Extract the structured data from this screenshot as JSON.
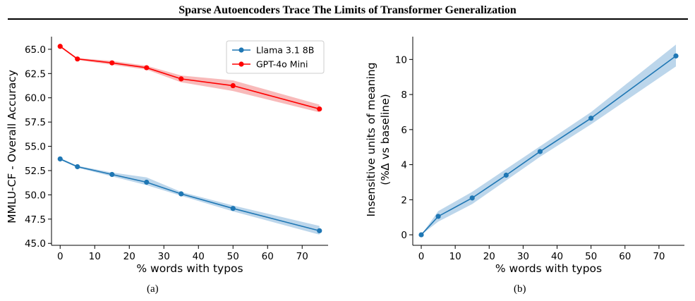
{
  "header": {
    "title": "Sparse Autoencoders Trace The Limits of Transformer Generalization"
  },
  "colors": {
    "blue": "#1f77b4",
    "red": "#ff0000",
    "blue_band": "#a6c8e4",
    "red_band": "#f6a3a3"
  },
  "chart_data": [
    {
      "type": "line",
      "caption": "(a)",
      "xlabel": "% words with typos",
      "ylabel": "MMLU-CF - Overall Accuracy",
      "xlim": [
        -2.5,
        77.5
      ],
      "ylim": [
        44.8,
        66.3
      ],
      "xticks": [
        0,
        10,
        20,
        30,
        40,
        50,
        60,
        70
      ],
      "yticks": [
        45.0,
        47.5,
        50.0,
        52.5,
        55.0,
        57.5,
        60.0,
        62.5,
        65.0
      ],
      "ytick_labels": [
        "45.0",
        "47.5",
        "50.0",
        "52.5",
        "55.0",
        "57.5",
        "60.0",
        "62.5",
        "65.0"
      ],
      "legend": "top-right",
      "grid": false,
      "series": [
        {
          "name": "Llama 3.1 8B",
          "color": "#1f77b4",
          "x": [
            0,
            5,
            15,
            25,
            35,
            50,
            75
          ],
          "y": [
            53.7,
            52.9,
            52.1,
            51.3,
            50.1,
            48.6,
            46.3
          ],
          "band": [
            [
              53.6,
              53.8
            ],
            [
              52.8,
              53.0
            ],
            [
              51.9,
              52.3
            ],
            [
              51.0,
              51.8
            ],
            [
              49.9,
              50.3
            ],
            [
              48.3,
              48.9
            ],
            [
              45.9,
              46.8
            ]
          ]
        },
        {
          "name": "GPT-4o Mini",
          "color": "#ff0000",
          "x": [
            0,
            5,
            15,
            25,
            35,
            50,
            75
          ],
          "y": [
            65.3,
            64.0,
            63.6,
            63.1,
            61.95,
            61.25,
            58.85
          ],
          "band": [
            [
              65.2,
              65.4
            ],
            [
              63.9,
              64.1
            ],
            [
              63.4,
              63.8
            ],
            [
              62.9,
              63.3
            ],
            [
              61.6,
              62.3
            ],
            [
              60.7,
              61.8
            ],
            [
              58.5,
              59.3
            ]
          ]
        }
      ]
    },
    {
      "type": "line",
      "caption": "(b)",
      "xlabel": "% words with typos",
      "ylabel_lines": [
        "Insensitive units of meaning",
        "(%Δ vs baseline)"
      ],
      "xlim": [
        -2.5,
        77.5
      ],
      "ylim": [
        -0.6,
        11.3
      ],
      "xticks": [
        0,
        10,
        20,
        30,
        40,
        50,
        60,
        70
      ],
      "yticks": [
        0,
        2,
        4,
        6,
        8,
        10
      ],
      "ytick_labels": [
        "0",
        "2",
        "4",
        "6",
        "8",
        "10"
      ],
      "grid": false,
      "series": [
        {
          "color": "#1f77b4",
          "x": [
            0,
            5,
            15,
            25,
            35,
            50,
            75
          ],
          "y": [
            0.0,
            1.05,
            2.1,
            3.4,
            4.75,
            6.65,
            10.2
          ],
          "band": [
            [
              0.0,
              0.0
            ],
            [
              0.75,
              1.35
            ],
            [
              1.75,
              2.45
            ],
            [
              3.1,
              3.75
            ],
            [
              4.45,
              5.05
            ],
            [
              6.3,
              7.0
            ],
            [
              9.6,
              10.85
            ]
          ]
        }
      ]
    }
  ]
}
